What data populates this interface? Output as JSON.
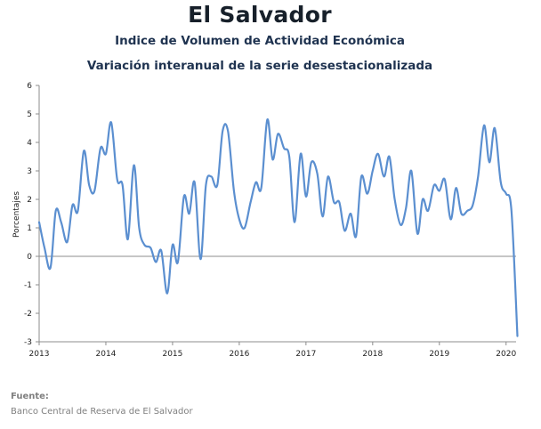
{
  "header": {
    "title": "El Salvador",
    "subtitle": "Indice de Volumen de  Actividad Económica",
    "subtitle2": "Variación interanual de la serie desestacionalizada"
  },
  "source": {
    "label": "Fuente:",
    "text": "Banco Central de Reserva de El Salvador"
  },
  "chart_data": {
    "type": "line",
    "title": "El Salvador",
    "ylabel": "Porcentajes",
    "xlabel": "",
    "ylim": [
      -3,
      6
    ],
    "yticks": [
      -3,
      -2,
      -1,
      0,
      1,
      2,
      3,
      4,
      5,
      6
    ],
    "xlim": [
      2013,
      2020.15
    ],
    "xticks": [
      2013,
      2014,
      2015,
      2016,
      2017,
      2018,
      2019,
      2020
    ],
    "xtick_labels": [
      "2013",
      "2014",
      "2015",
      "2016",
      "2017",
      "2018",
      "2019",
      "2020"
    ],
    "grid": "horizontal zero line only",
    "line_color": "#5b8fd0",
    "series": [
      {
        "values": [
          [
            2013.0,
            1.2
          ],
          [
            2013.08,
            0.3
          ],
          [
            2013.17,
            -0.4
          ],
          [
            2013.25,
            1.6
          ],
          [
            2013.33,
            1.2
          ],
          [
            2013.42,
            0.5
          ],
          [
            2013.5,
            1.8
          ],
          [
            2013.58,
            1.6
          ],
          [
            2013.67,
            3.7
          ],
          [
            2013.75,
            2.5
          ],
          [
            2013.83,
            2.3
          ],
          [
            2013.92,
            3.8
          ],
          [
            2014.0,
            3.6
          ],
          [
            2014.08,
            4.7
          ],
          [
            2014.17,
            2.7
          ],
          [
            2014.25,
            2.5
          ],
          [
            2014.33,
            0.6
          ],
          [
            2014.42,
            3.2
          ],
          [
            2014.5,
            1.0
          ],
          [
            2014.58,
            0.4
          ],
          [
            2014.67,
            0.3
          ],
          [
            2014.75,
            -0.2
          ],
          [
            2014.83,
            0.2
          ],
          [
            2014.92,
            -1.3
          ],
          [
            2015.0,
            0.4
          ],
          [
            2015.08,
            -0.2
          ],
          [
            2015.17,
            2.1
          ],
          [
            2015.25,
            1.5
          ],
          [
            2015.33,
            2.6
          ],
          [
            2015.42,
            -0.1
          ],
          [
            2015.5,
            2.5
          ],
          [
            2015.58,
            2.8
          ],
          [
            2015.67,
            2.5
          ],
          [
            2015.75,
            4.4
          ],
          [
            2015.83,
            4.4
          ],
          [
            2015.92,
            2.3
          ],
          [
            2016.0,
            1.3
          ],
          [
            2016.08,
            1.0
          ],
          [
            2016.17,
            1.9
          ],
          [
            2016.25,
            2.6
          ],
          [
            2016.33,
            2.4
          ],
          [
            2016.42,
            4.8
          ],
          [
            2016.5,
            3.4
          ],
          [
            2016.58,
            4.3
          ],
          [
            2016.67,
            3.8
          ],
          [
            2016.75,
            3.5
          ],
          [
            2016.83,
            1.2
          ],
          [
            2016.92,
            3.6
          ],
          [
            2017.0,
            2.1
          ],
          [
            2017.08,
            3.3
          ],
          [
            2017.17,
            2.9
          ],
          [
            2017.25,
            1.4
          ],
          [
            2017.33,
            2.8
          ],
          [
            2017.42,
            1.9
          ],
          [
            2017.5,
            1.9
          ],
          [
            2017.58,
            0.9
          ],
          [
            2017.67,
            1.5
          ],
          [
            2017.75,
            0.7
          ],
          [
            2017.83,
            2.8
          ],
          [
            2017.92,
            2.2
          ],
          [
            2018.0,
            3.0
          ],
          [
            2018.08,
            3.6
          ],
          [
            2018.17,
            2.8
          ],
          [
            2018.25,
            3.5
          ],
          [
            2018.33,
            2.0
          ],
          [
            2018.42,
            1.1
          ],
          [
            2018.5,
            1.7
          ],
          [
            2018.58,
            3.0
          ],
          [
            2018.67,
            0.8
          ],
          [
            2018.75,
            2.0
          ],
          [
            2018.83,
            1.6
          ],
          [
            2018.92,
            2.5
          ],
          [
            2019.0,
            2.3
          ],
          [
            2019.08,
            2.7
          ],
          [
            2019.17,
            1.3
          ],
          [
            2019.25,
            2.4
          ],
          [
            2019.33,
            1.5
          ],
          [
            2019.42,
            1.6
          ],
          [
            2019.5,
            1.8
          ],
          [
            2019.58,
            2.8
          ],
          [
            2019.67,
            4.6
          ],
          [
            2019.75,
            3.3
          ],
          [
            2019.83,
            4.5
          ],
          [
            2019.92,
            2.6
          ],
          [
            2020.0,
            2.2
          ],
          [
            2020.08,
            1.6
          ],
          [
            2020.17,
            -2.8
          ]
        ]
      }
    ]
  }
}
